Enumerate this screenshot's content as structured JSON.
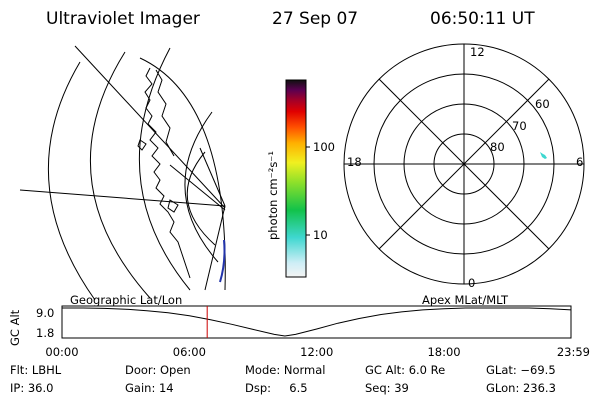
{
  "header": {
    "instrument": "Ultraviolet Imager",
    "date": "27 Sep 07",
    "time": "06:50:11 UT"
  },
  "colorbar": {
    "unit_label": "photon cm⁻²s⁻¹",
    "ticks": [
      {
        "label": "100",
        "value": 100
      },
      {
        "label": "10",
        "value": 10
      }
    ],
    "scale": "log",
    "colors": [
      "#f2f2f2",
      "#cfeff6",
      "#3fd7d0",
      "#12c24a",
      "#8ee02a",
      "#f0f020",
      "#ffb000",
      "#ff5000",
      "#e00000",
      "#a0002a",
      "#5a0050",
      "#101010"
    ]
  },
  "polar": {
    "mlt_labels": {
      "top": "12",
      "left": "18",
      "right": "6",
      "bottom": "0"
    },
    "lat_labels": [
      "60",
      "70",
      "80"
    ]
  },
  "timeline": {
    "ylabel": "GC Alt",
    "ytick_top": "9.0",
    "ytick_bottom": "1.8",
    "left_caption": "Geographic Lat/Lon",
    "right_caption": "Apex MLat/MLT",
    "xticks": [
      "00:00",
      "06:00",
      "12:00",
      "18:00",
      "23:59"
    ],
    "marker_time": "06:50"
  },
  "chart_data": {
    "type": "line",
    "title": "",
    "xlabel": "",
    "ylabel": "GC Alt",
    "xlim": [
      "00:00",
      "23:59"
    ],
    "ylim": [
      1.8,
      9.0
    ],
    "x_hours": [
      0,
      1,
      2,
      3,
      4,
      5,
      6,
      7,
      8,
      9,
      10,
      10.5,
      11,
      12,
      13,
      14,
      15,
      16,
      17,
      18,
      19,
      20,
      21,
      22,
      23,
      23.98
    ],
    "values": [
      9.0,
      9.0,
      8.9,
      8.7,
      8.3,
      7.8,
      7.0,
      6.0,
      4.8,
      3.5,
      2.2,
      1.8,
      2.2,
      3.6,
      5.1,
      6.3,
      7.3,
      8.0,
      8.5,
      8.8,
      9.0,
      9.0,
      9.0,
      9.0,
      8.8,
      8.5
    ],
    "marker_x_hours": 6.84
  },
  "footer": {
    "filter": "Flt: LBHL",
    "ip": "IP: 36.0",
    "door": "Door: Open",
    "gain": "Gain: 14",
    "mode": "Mode: Normal",
    "dsp": "Dsp:     6.5",
    "gc_alt": "GC Alt: 6.0 Re",
    "seq": "Seq: 39",
    "glat": "GLat: −69.5",
    "glon": "GLon: 236.3"
  }
}
